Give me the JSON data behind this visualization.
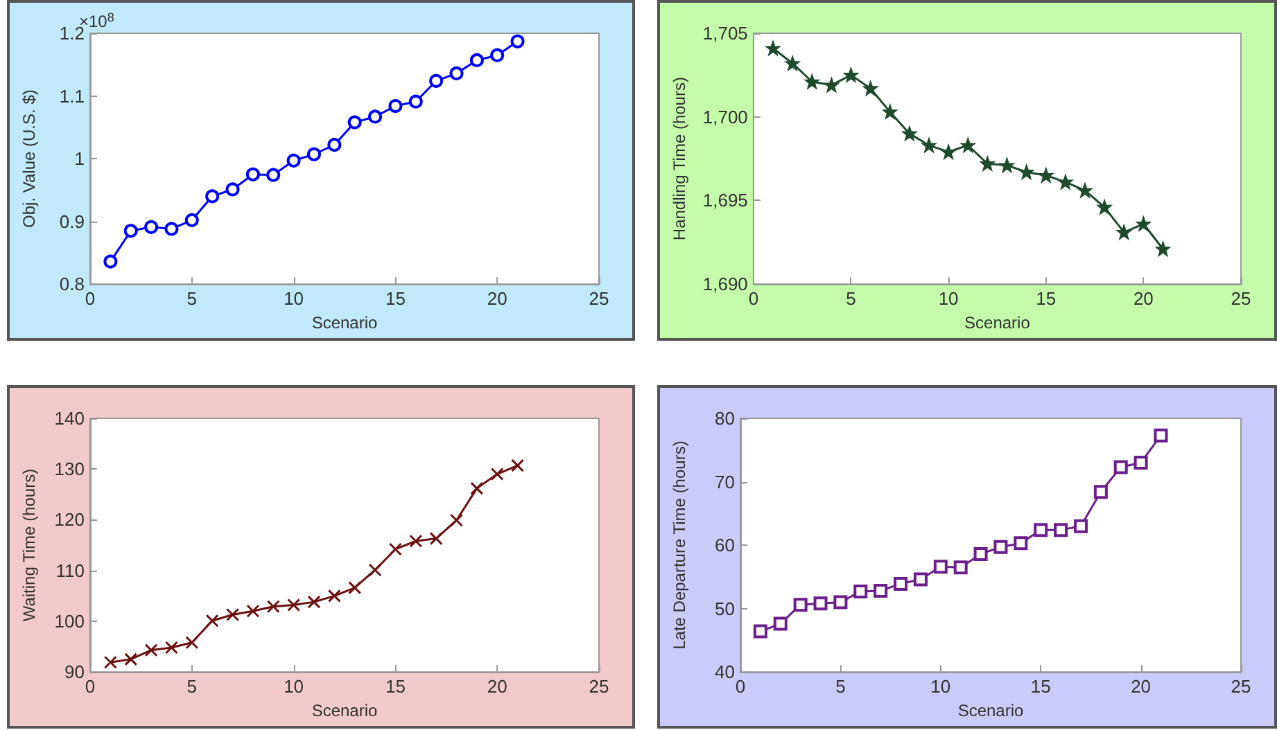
{
  "chart_data": [
    {
      "type": "line",
      "xlabel": "Scenario",
      "ylabel": "Obj. Value (U.S. $)",
      "annotations": [
        "×10$^{8}$"
      ],
      "x": [
        1,
        2,
        3,
        4,
        5,
        6,
        7,
        8,
        9,
        10,
        11,
        12,
        13,
        14,
        15,
        16,
        17,
        18,
        19,
        20,
        21
      ],
      "xlim": [
        0,
        25
      ],
      "xticks": [
        0,
        5,
        10,
        15,
        20,
        25
      ],
      "ylim": [
        0.8,
        1.2
      ],
      "yticks": [
        0.8,
        0.9,
        1,
        1.1,
        1.2
      ],
      "marker": "circle",
      "line_style": "solid",
      "series": [
        {
          "color": "#0000ff",
          "values": [
            0.836,
            0.885,
            0.891,
            0.888,
            0.902,
            0.94,
            0.951,
            0.975,
            0.974,
            0.997,
            1.007,
            1.022,
            1.058,
            1.067,
            1.084,
            1.091,
            1.124,
            1.136,
            1.157,
            1.165,
            1.187
          ]
        }
      ]
    },
    {
      "type": "line",
      "xlabel": "Scenario",
      "ylabel": "Handling Time (hours)",
      "x": [
        1,
        2,
        3,
        4,
        5,
        6,
        7,
        8,
        9,
        10,
        11,
        12,
        13,
        14,
        15,
        16,
        17,
        18,
        19,
        20,
        21
      ],
      "xlim": [
        0,
        25
      ],
      "xticks": [
        0,
        5,
        10,
        15,
        20,
        25
      ],
      "ylim": [
        1690,
        1705
      ],
      "yticks": [
        {
          "value": 1690,
          "label": "1,690"
        },
        {
          "value": 1695,
          "label": "1,695"
        },
        {
          "value": 1700,
          "label": "1,700"
        },
        {
          "value": 1705,
          "label": "1,705"
        }
      ],
      "marker": "star",
      "line_style": "solid",
      "series": [
        {
          "color": "#1f4a2c",
          "values": [
            1704.1,
            1703.2,
            1702.1,
            1701.9,
            1702.5,
            1701.7,
            1700.3,
            1699.0,
            1698.3,
            1697.9,
            1698.3,
            1697.2,
            1697.1,
            1696.7,
            1696.5,
            1696.1,
            1695.6,
            1694.6,
            1693.1,
            1693.6,
            1692.1
          ]
        }
      ]
    },
    {
      "type": "line",
      "xlabel": "Scenario",
      "ylabel": "Waiting Time (hours)",
      "x": [
        1,
        2,
        3,
        4,
        5,
        6,
        7,
        8,
        9,
        10,
        11,
        12,
        13,
        14,
        15,
        16,
        17,
        18,
        19,
        20,
        21
      ],
      "xlim": [
        0,
        25
      ],
      "xticks": [
        0,
        5,
        10,
        15,
        20,
        25
      ],
      "ylim": [
        90,
        140
      ],
      "yticks": [
        90,
        100,
        110,
        120,
        130,
        140
      ],
      "marker": "cross",
      "line_style": "solid",
      "series": [
        {
          "color": "#6b1010",
          "values": [
            91.9,
            92.5,
            94.3,
            94.8,
            95.8,
            100.1,
            101.3,
            102.0,
            102.9,
            103.2,
            103.8,
            105.0,
            106.6,
            110.1,
            114.2,
            115.8,
            116.3,
            119.9,
            126.2,
            129.0,
            130.7
          ]
        }
      ]
    },
    {
      "type": "line",
      "xlabel": "Scenario",
      "ylabel": "Late Departure Time (hours)",
      "x": [
        1,
        2,
        3,
        4,
        5,
        6,
        7,
        8,
        9,
        10,
        11,
        12,
        13,
        14,
        15,
        16,
        17,
        18,
        19,
        20,
        21
      ],
      "xlim": [
        0,
        25
      ],
      "xticks": [
        0,
        5,
        10,
        15,
        20,
        25
      ],
      "ylim": [
        40,
        80
      ],
      "yticks": [
        40,
        50,
        60,
        70,
        80
      ],
      "marker": "square",
      "line_style": "solid",
      "series": [
        {
          "color": "#6a1f8a",
          "values": [
            46.4,
            47.6,
            50.6,
            50.8,
            51.0,
            52.7,
            52.8,
            53.9,
            54.6,
            56.6,
            56.5,
            58.6,
            59.7,
            60.3,
            62.4,
            62.4,
            63.0,
            68.4,
            72.3,
            73.0,
            77.3
          ]
        }
      ]
    }
  ]
}
